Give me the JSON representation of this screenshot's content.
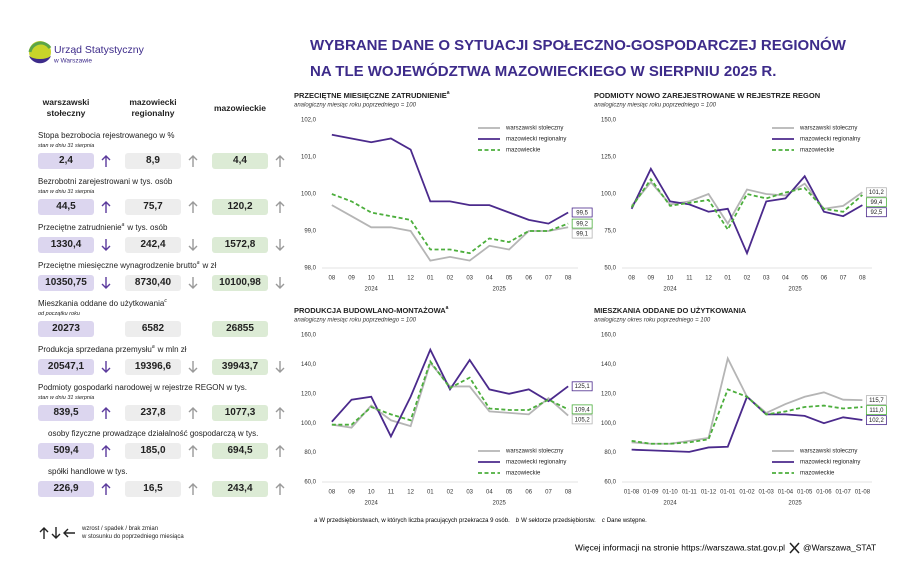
{
  "header": {
    "logo_line1": "Urząd Statystyczny",
    "logo_line2": "w Warszawie",
    "title_lines": [
      "WYBRANE DANE O SYTUACJI SPOŁECZNO-GOSPODARCZEJ REGIONÓW",
      "NA TLE WOJEWÓDZTWA MAZOWIECKIEGO W SIERPNIU 2025 R."
    ]
  },
  "table": {
    "columns": [
      "warszawski stołeczny",
      "mazowiecki regionalny",
      "mazowieckie"
    ],
    "rows": [
      {
        "label": "Stopa bezrobocia rejestrowanego w %",
        "subtitle": "stan w dniu 31 sierpnia",
        "values": [
          "2,4",
          "8,9",
          "4,4"
        ],
        "trends": [
          "up",
          "up",
          "up"
        ]
      },
      {
        "label": "Bezrobotni zarejestrowani w tys. osób",
        "subtitle": "stan w dniu 31 sierpnia",
        "values": [
          "44,5",
          "75,7",
          "120,2"
        ],
        "trends": [
          "up",
          "up",
          "up"
        ]
      },
      {
        "label": "Przeciętne zatrudnienie",
        "note": "a",
        "label_end": "w tys. osób",
        "values": [
          "1330,4",
          "242,4",
          "1572,8"
        ],
        "trends": [
          "down",
          "down",
          "down"
        ]
      },
      {
        "label": "Przeciętne miesięczne wynagrodzenie brutto",
        "note": "a",
        "label_end": "w zł",
        "values": [
          "10350,75",
          "8730,40",
          "10100,98"
        ],
        "trends": [
          "down",
          "down",
          "down"
        ]
      },
      {
        "label": "Mieszkania oddane do użytkowania",
        "note": "c",
        "subtitle": "od początku roku",
        "values": [
          "20273",
          "6582",
          "26855"
        ]
      },
      {
        "label": "Produkcja sprzedana przemysłu",
        "note": "a",
        "label_end": "w mln zł",
        "values": [
          "20547,1",
          "19396,6",
          "39943,7"
        ],
        "trends": [
          "down",
          "down",
          "down"
        ]
      },
      {
        "label": "Podmioty gospodarki narodowej w rejestrze REGON w tys.",
        "subtitle": "stan w dniu 31 sierpnia",
        "values": [
          "839,5",
          "237,8",
          "1077,3"
        ],
        "trends": [
          "up",
          "up",
          "up"
        ],
        "children": [
          {
            "label": "osoby fizyczne prowadzące działalność gospodarczą w tys.",
            "values": [
              "509,4",
              "185,0",
              "694,5"
            ],
            "trends": [
              "up",
              "up",
              "up"
            ]
          },
          {
            "label": "spółki handlowe w tys.",
            "values": [
              "226,9",
              "16,5",
              "243,4"
            ],
            "trends": [
              "up",
              "up",
              "up"
            ]
          }
        ]
      }
    ]
  },
  "legend": {
    "text_lines": [
      "wzrost / spadek / brak zmian",
      "w stosunku do poprzedniego miesiąca"
    ]
  },
  "chart_data": [
    {
      "type": "line",
      "title": "PRZECIĘTNE MIESIĘCZNE ZATRUDNIENIE",
      "title_note": "a",
      "subtitle": "analogiczny miesiąc roku poprzedniego = 100",
      "categories": [
        "08",
        "09",
        "10",
        "11",
        "12",
        "01",
        "02",
        "03",
        "04",
        "05",
        "06",
        "07",
        "08"
      ],
      "x_groups": [
        {
          "label": "2024",
          "count": 5
        },
        {
          "label": "2025",
          "count": 8
        }
      ],
      "ylim": [
        98,
        102
      ],
      "yticks": [
        {
          "value": 98,
          "label": "98,0"
        },
        {
          "value": 99,
          "label": "99,0"
        },
        {
          "value": 100,
          "label": "100,0"
        },
        {
          "value": 101,
          "label": "101,0"
        },
        {
          "value": 102,
          "label": "102,0"
        }
      ],
      "grid": false,
      "legend_position": "upper right",
      "series": [
        {
          "name": "warszawski stołeczny",
          "color": "#b5b5b5",
          "style": "solid",
          "values": [
            99.7,
            99.4,
            99.1,
            99.1,
            99.0,
            98.2,
            98.3,
            98.2,
            98.6,
            98.5,
            99.0,
            99.0,
            99.1
          ],
          "value_labels": [
            null,
            null,
            null,
            null,
            null,
            null,
            null,
            null,
            null,
            null,
            null,
            null,
            "99,1"
          ]
        },
        {
          "name": "mazowiecki regionalny",
          "color": "#4b2a8c",
          "style": "solid",
          "values": [
            101.6,
            101.5,
            101.4,
            101.5,
            101.2,
            99.8,
            99.8,
            99.7,
            99.7,
            99.5,
            99.3,
            99.2,
            99.5
          ],
          "value_labels": [
            null,
            null,
            null,
            null,
            null,
            null,
            null,
            null,
            null,
            null,
            null,
            null,
            "99,5"
          ]
        },
        {
          "name": "mazowieckie",
          "color": "#4cae3c",
          "style": "dashed",
          "values": [
            100.0,
            99.8,
            99.5,
            99.4,
            99.3,
            98.5,
            98.5,
            98.4,
            98.8,
            98.7,
            99.0,
            99.0,
            99.2
          ],
          "value_labels": [
            null,
            null,
            null,
            null,
            null,
            null,
            null,
            null,
            null,
            null,
            null,
            null,
            "99,2"
          ]
        }
      ]
    },
    {
      "type": "line",
      "title": "PODMIOTY NOWO ZAREJESTROWANE W REJESTRZE REGON",
      "subtitle": "analogiczny miesiąc roku poprzedniego = 100",
      "categories": [
        "08",
        "09",
        "10",
        "11",
        "12",
        "01",
        "02",
        "03",
        "04",
        "05",
        "06",
        "07",
        "08"
      ],
      "x_groups": [
        {
          "label": "2024",
          "count": 5
        },
        {
          "label": "2025",
          "count": 8
        }
      ],
      "ylim": [
        50,
        150
      ],
      "yticks": [
        {
          "value": 50,
          "label": "50,0"
        },
        {
          "value": 75,
          "label": "75,0"
        },
        {
          "value": 100,
          "label": "100,0"
        },
        {
          "value": 125,
          "label": "125,0"
        },
        {
          "value": 150,
          "label": "150,0"
        }
      ],
      "grid": false,
      "legend_position": "upper right",
      "series": [
        {
          "name": "warszawski stołeczny",
          "color": "#b5b5b5",
          "style": "solid",
          "values": [
            92,
            108,
            93,
            95,
            100,
            80,
            103,
            100,
            99,
            107,
            90,
            92,
            101.2
          ],
          "value_labels": [
            null,
            null,
            null,
            null,
            null,
            null,
            null,
            null,
            null,
            null,
            null,
            null,
            "101,2"
          ]
        },
        {
          "name": "mazowiecki regionalny",
          "color": "#4b2a8c",
          "style": "solid",
          "values": [
            90,
            117,
            95,
            93,
            88,
            90,
            60,
            95,
            97,
            112,
            88,
            85,
            92.5
          ],
          "value_labels": [
            null,
            null,
            null,
            null,
            null,
            null,
            null,
            null,
            null,
            null,
            null,
            null,
            "92,5"
          ]
        },
        {
          "name": "mazowieckie",
          "color": "#4cae3c",
          "style": "dashed",
          "values": [
            91,
            110,
            92,
            94,
            96,
            76,
            100,
            97,
            101,
            104,
            90,
            88,
            99.4
          ],
          "value_labels": [
            null,
            null,
            null,
            null,
            null,
            null,
            null,
            null,
            null,
            null,
            null,
            null,
            "99,4"
          ]
        }
      ]
    },
    {
      "type": "line",
      "title": "PRODUKCJA BUDOWLANO-MONTAŻOWA",
      "title_note": "a",
      "subtitle": "analogiczny miesiąc roku poprzedniego = 100",
      "categories": [
        "08",
        "09",
        "10",
        "11",
        "12",
        "01",
        "02",
        "03",
        "04",
        "05",
        "06",
        "07",
        "08"
      ],
      "x_groups": [
        {
          "label": "2024",
          "count": 5
        },
        {
          "label": "2025",
          "count": 8
        }
      ],
      "ylim": [
        60,
        160
      ],
      "yticks": [
        {
          "value": 60,
          "label": "60,0"
        },
        {
          "value": 80,
          "label": "80,0"
        },
        {
          "value": 100,
          "label": "100,0"
        },
        {
          "value": 120,
          "label": "120,0"
        },
        {
          "value": 140,
          "label": "140,0"
        },
        {
          "value": 160,
          "label": "160,0"
        }
      ],
      "grid": false,
      "legend_position": "lower right",
      "series": [
        {
          "name": "warszawski stołeczny",
          "color": "#b5b5b5",
          "style": "solid",
          "values": [
            99,
            97,
            112,
            102,
            98,
            141,
            125,
            125,
            108,
            107,
            106,
            117,
            105.2
          ],
          "value_labels": [
            null,
            null,
            null,
            null,
            null,
            null,
            null,
            null,
            null,
            null,
            null,
            null,
            "105,2"
          ]
        },
        {
          "name": "mazowiecki regionalny",
          "color": "#4b2a8c",
          "style": "solid",
          "values": [
            101,
            116,
            118,
            91,
            118,
            150,
            123,
            143,
            123,
            120,
            123,
            115,
            125.1
          ],
          "value_labels": [
            null,
            null,
            null,
            null,
            null,
            null,
            null,
            null,
            null,
            null,
            null,
            null,
            "125,1"
          ]
        },
        {
          "name": "mazowieckie",
          "color": "#4cae3c",
          "style": "dashed",
          "values": [
            99,
            99,
            111,
            106,
            102,
            142,
            124,
            131,
            110,
            109,
            109,
            116,
            109.4
          ],
          "value_labels": [
            null,
            null,
            null,
            null,
            null,
            null,
            null,
            null,
            null,
            null,
            null,
            null,
            "109,4"
          ]
        }
      ]
    },
    {
      "type": "line",
      "title": "MIESZKANIA ODDANE DO UŻYTKOWANIA",
      "subtitle": "analogiczny okres roku poprzedniego = 100",
      "categories": [
        "01-08",
        "01-09",
        "01-10",
        "01-11",
        "01-12",
        "01-01",
        "01-02",
        "01-03",
        "01-04",
        "01-05",
        "01-06",
        "01-07",
        "01-08"
      ],
      "x_groups": [
        {
          "label": "2024",
          "count": 5
        },
        {
          "label": "2025",
          "count": 8
        }
      ],
      "ylim": [
        60,
        160
      ],
      "yticks": [
        {
          "value": 60,
          "label": "60,0"
        },
        {
          "value": 80,
          "label": "80,0"
        },
        {
          "value": 100,
          "label": "100,0"
        },
        {
          "value": 120,
          "label": "120,0"
        },
        {
          "value": 140,
          "label": "140,0"
        },
        {
          "value": 160,
          "label": "160,0"
        }
      ],
      "grid": false,
      "legend_position": "lower right",
      "series": [
        {
          "name": "warszawski stołeczny",
          "color": "#b5b5b5",
          "style": "solid",
          "values": [
            87,
            86,
            86,
            88,
            90,
            144,
            118,
            107,
            113,
            118,
            121,
            116,
            115.7
          ],
          "value_labels": [
            null,
            null,
            null,
            null,
            null,
            null,
            null,
            null,
            null,
            null,
            null,
            null,
            "115,7"
          ]
        },
        {
          "name": "mazowiecki regionalny",
          "color": "#4b2a8c",
          "style": "solid",
          "values": [
            82,
            81.5,
            81,
            80.5,
            83.5,
            84,
            118,
            106,
            106,
            105,
            100,
            104,
            102.2
          ],
          "value_labels": [
            null,
            null,
            null,
            null,
            null,
            null,
            null,
            null,
            null,
            null,
            null,
            null,
            "102,2"
          ]
        },
        {
          "name": "mazowieckie",
          "color": "#4cae3c",
          "style": "dashed",
          "values": [
            88,
            86,
            86,
            87,
            89,
            123,
            118,
            106,
            108,
            111,
            112,
            110,
            111.0
          ],
          "value_labels": [
            null,
            null,
            null,
            null,
            null,
            null,
            null,
            null,
            null,
            null,
            null,
            null,
            "111,0"
          ]
        }
      ]
    }
  ],
  "footnotes": [
    {
      "mark": "a",
      "text": "W przedsiębiorstwach, w których liczba pracujących przekracza 9 osób."
    },
    {
      "mark": "b",
      "text": "W sektorze przedsiębiorstw."
    },
    {
      "mark": "c",
      "text": "Dane wstępne."
    }
  ],
  "footer": {
    "more_info": "Więcej informacji na stronie https://warszawa.stat.gov.pl",
    "social": "@Warszawa_STAT"
  }
}
